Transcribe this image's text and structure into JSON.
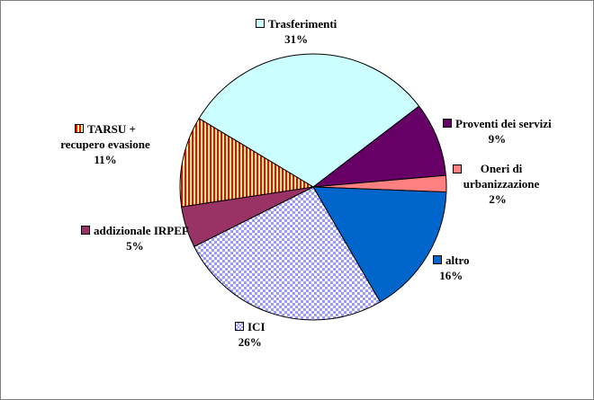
{
  "chart_data": {
    "type": "pie",
    "title": "",
    "start_angle_deg": 301,
    "direction": "clockwise",
    "slices": [
      {
        "label": "Trasferimenti",
        "value": 31,
        "pct": "31%",
        "color": "#CCFFFF",
        "pattern": "solid"
      },
      {
        "label": "Proventi dei servizi",
        "value": 9,
        "pct": "9%",
        "color": "#660066",
        "pattern": "solid"
      },
      {
        "label": "Oneri di urbanizzazione",
        "value": 2,
        "pct": "2%",
        "color": "#FF8080",
        "pattern": "solid"
      },
      {
        "label": "altro",
        "value": 16,
        "pct": "16%",
        "color": "#0066CC",
        "pattern": "solid"
      },
      {
        "label": "ICI",
        "value": 26,
        "pct": "26%",
        "color": "#9999FF",
        "pattern": "checker"
      },
      {
        "label": "addizionale IRPEF",
        "value": 5,
        "pct": "5%",
        "color": "#993366",
        "pattern": "solid"
      },
      {
        "label": "TARSU + recupero evasione",
        "value": 11,
        "pct": "11%",
        "color": "#FF0000",
        "pattern": "vstripes"
      }
    ]
  }
}
